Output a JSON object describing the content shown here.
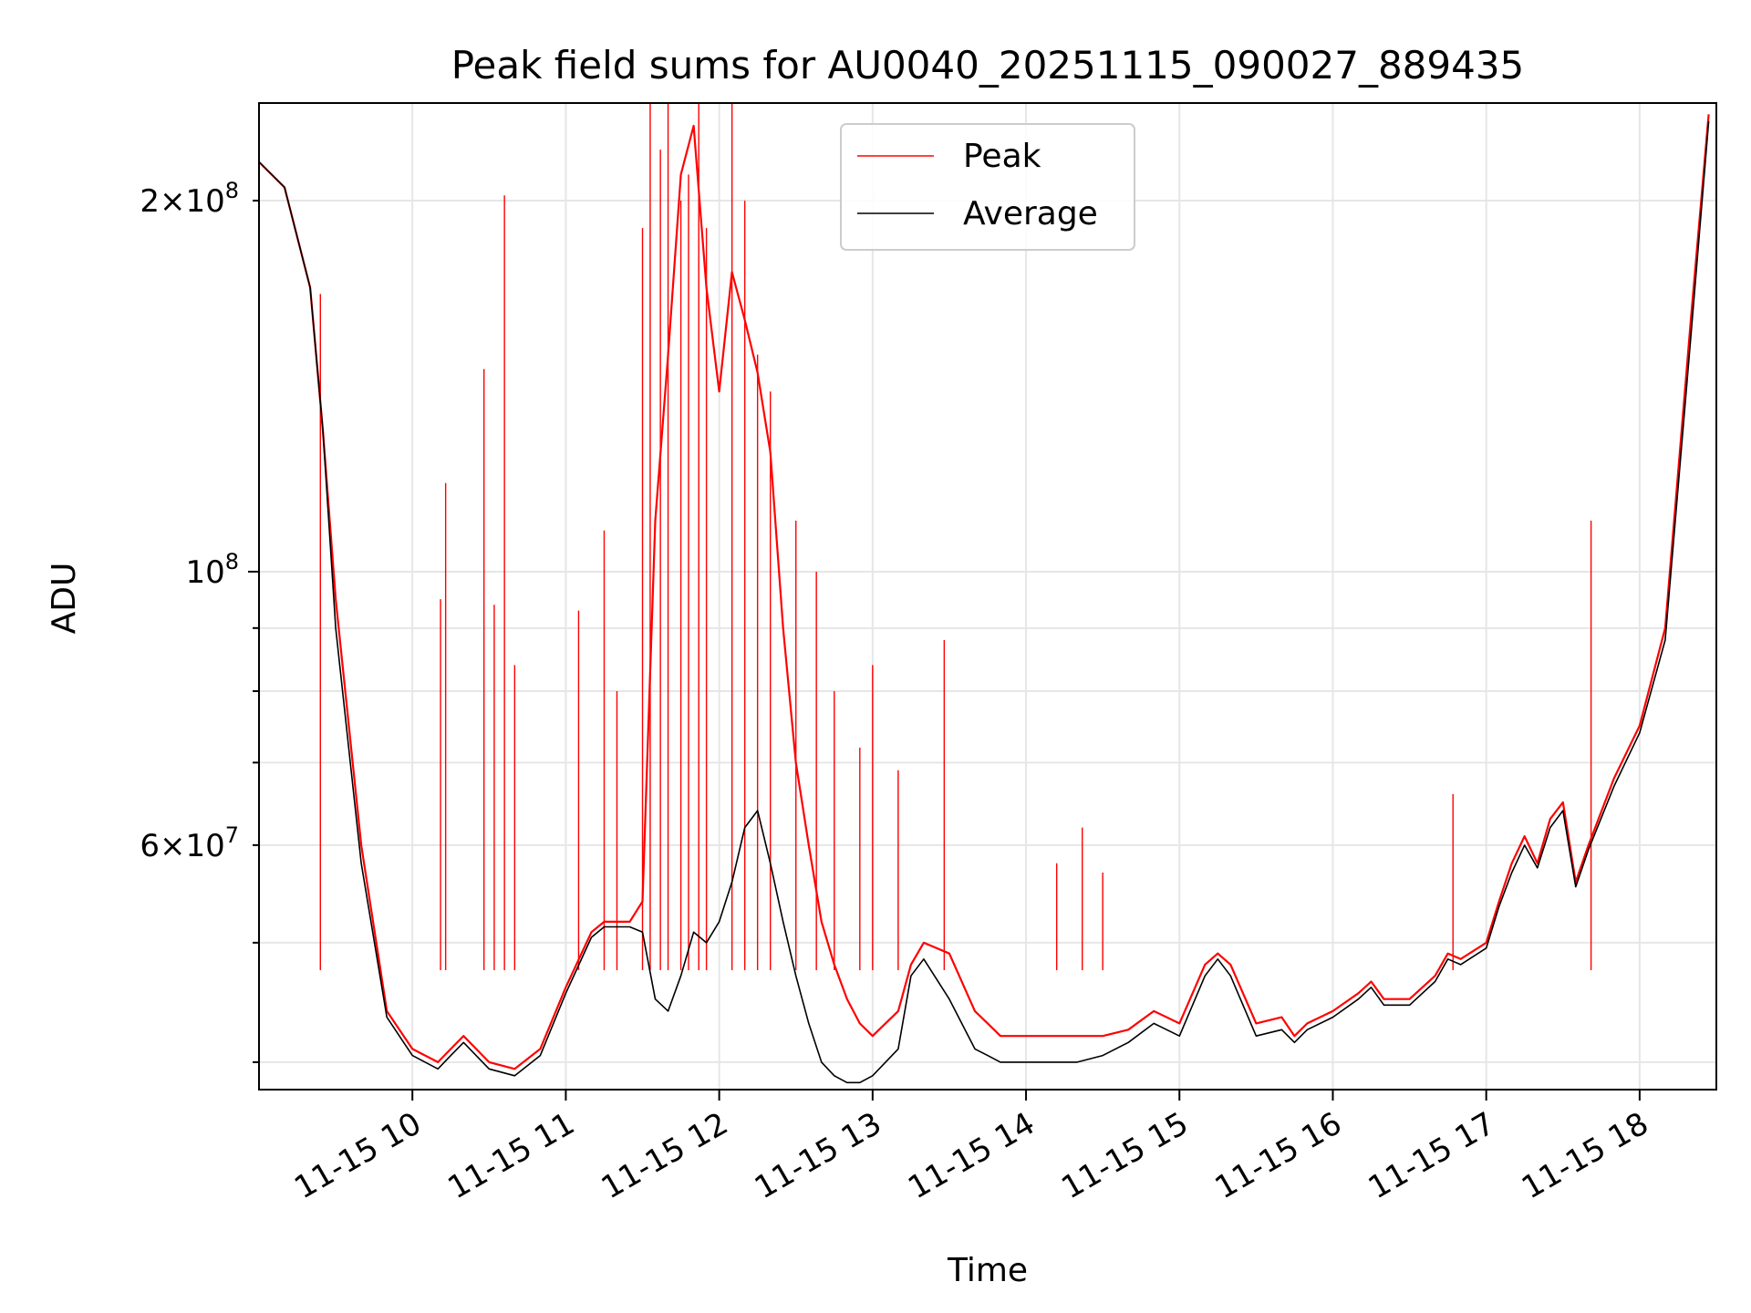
{
  "chart_data": {
    "type": "line",
    "title": "Peak field sums for AU0040_20251115_090027_889435",
    "xlabel": "Time",
    "ylabel": "ADU",
    "y_scale": "log",
    "ylim": [
      38000000,
      240000000
    ],
    "xlim": [
      "11-15 09:00",
      "11-15 18:30"
    ],
    "x_ticks": [
      "11-15 10",
      "11-15 11",
      "11-15 12",
      "11-15 13",
      "11-15 14",
      "11-15 15",
      "11-15 16",
      "11-15 17",
      "11-15 18"
    ],
    "y_ticks_labeled": [
      {
        "value": 60000000,
        "mantissa": "6",
        "exp": "7"
      },
      {
        "value": 100000000,
        "mantissa": "",
        "exp": "8"
      },
      {
        "value": 200000000,
        "mantissa": "2",
        "exp": "8"
      }
    ],
    "grid": true,
    "legend_position": "upper-center",
    "series": [
      {
        "name": "Peak",
        "color": "#ff0000",
        "x": [
          "09:00",
          "09:10",
          "09:20",
          "09:25",
          "09:30",
          "09:40",
          "09:50",
          "10:00",
          "10:05",
          "10:10",
          "10:15",
          "10:20",
          "10:30",
          "10:40",
          "10:50",
          "11:00",
          "11:10",
          "11:15",
          "11:20",
          "11:25",
          "11:30",
          "11:35",
          "11:40",
          "11:45",
          "11:50",
          "11:55",
          "12:00",
          "12:05",
          "12:10",
          "12:15",
          "12:20",
          "12:25",
          "12:30",
          "12:35",
          "12:40",
          "12:45",
          "12:50",
          "12:55",
          "13:00",
          "13:10",
          "13:15",
          "13:20",
          "13:30",
          "13:40",
          "13:45",
          "13:50",
          "14:00",
          "14:10",
          "14:20",
          "14:30",
          "14:40",
          "14:50",
          "15:00",
          "15:10",
          "15:15",
          "15:20",
          "15:30",
          "15:40",
          "15:45",
          "15:50",
          "16:00",
          "16:10",
          "16:15",
          "16:20",
          "16:30",
          "16:40",
          "16:45",
          "16:50",
          "17:00",
          "17:05",
          "17:10",
          "17:15",
          "17:20",
          "17:25",
          "17:30",
          "17:35",
          "17:40",
          "17:50",
          "18:00",
          "18:10",
          "18:20",
          "18:27"
        ],
        "values": [
          215000000,
          205000000,
          170000000,
          130000000,
          95000000,
          60000000,
          44000000,
          41000000,
          40500000,
          40000000,
          41000000,
          42000000,
          40000000,
          39500000,
          41000000,
          46000000,
          51000000,
          52000000,
          52000000,
          52000000,
          54000000,
          110000000,
          150000000,
          210000000,
          230000000,
          170000000,
          140000000,
          175000000,
          160000000,
          145000000,
          125000000,
          90000000,
          70000000,
          60000000,
          52000000,
          48000000,
          45000000,
          43000000,
          42000000,
          44000000,
          48000000,
          50000000,
          49000000,
          44000000,
          43000000,
          42000000,
          42000000,
          42000000,
          42000000,
          42000000,
          42500000,
          44000000,
          43000000,
          48000000,
          49000000,
          48000000,
          43000000,
          43500000,
          42000000,
          43000000,
          44000000,
          45500000,
          46500000,
          45000000,
          45000000,
          47000000,
          49000000,
          48500000,
          50000000,
          54000000,
          58000000,
          61000000,
          58000000,
          63000000,
          65000000,
          56000000,
          60000000,
          68000000,
          75000000,
          90000000,
          160000000,
          235000000
        ]
      },
      {
        "name": "Average",
        "color": "#000000",
        "x": [
          "09:00",
          "09:10",
          "09:20",
          "09:25",
          "09:30",
          "09:40",
          "09:50",
          "10:00",
          "10:05",
          "10:10",
          "10:15",
          "10:20",
          "10:30",
          "10:40",
          "10:50",
          "11:00",
          "11:10",
          "11:15",
          "11:20",
          "11:25",
          "11:30",
          "11:35",
          "11:40",
          "11:45",
          "11:50",
          "11:55",
          "12:00",
          "12:05",
          "12:10",
          "12:15",
          "12:20",
          "12:25",
          "12:30",
          "12:35",
          "12:40",
          "12:45",
          "12:50",
          "12:55",
          "13:00",
          "13:10",
          "13:15",
          "13:20",
          "13:30",
          "13:40",
          "13:45",
          "13:50",
          "14:00",
          "14:10",
          "14:20",
          "14:30",
          "14:40",
          "14:50",
          "15:00",
          "15:10",
          "15:15",
          "15:20",
          "15:30",
          "15:40",
          "15:45",
          "15:50",
          "16:00",
          "16:10",
          "16:15",
          "16:20",
          "16:30",
          "16:40",
          "16:45",
          "16:50",
          "17:00",
          "17:05",
          "17:10",
          "17:15",
          "17:20",
          "17:25",
          "17:30",
          "17:35",
          "17:40",
          "17:50",
          "18:00",
          "18:10",
          "18:20",
          "18:27"
        ],
        "values": [
          215000000,
          205000000,
          170000000,
          130000000,
          90000000,
          58000000,
          43500000,
          40500000,
          40000000,
          39500000,
          40500000,
          41500000,
          39500000,
          39000000,
          40500000,
          45500000,
          50500000,
          51500000,
          51500000,
          51500000,
          51000000,
          45000000,
          44000000,
          47000000,
          51000000,
          50000000,
          52000000,
          56000000,
          62000000,
          64000000,
          58000000,
          52000000,
          47000000,
          43000000,
          40000000,
          39000000,
          38500000,
          38500000,
          39000000,
          41000000,
          47000000,
          48500000,
          45000000,
          41000000,
          40500000,
          40000000,
          40000000,
          40000000,
          40000000,
          40500000,
          41500000,
          43000000,
          42000000,
          47000000,
          48500000,
          47000000,
          42000000,
          42500000,
          41500000,
          42500000,
          43500000,
          45000000,
          46000000,
          44500000,
          44500000,
          46500000,
          48500000,
          48000000,
          49500000,
          53500000,
          57000000,
          60000000,
          57500000,
          62000000,
          64000000,
          55500000,
          59500000,
          67000000,
          74000000,
          88000000,
          155000000,
          232000000
        ]
      }
    ],
    "spikes": [
      {
        "x": "09:24",
        "value": 168000000
      },
      {
        "x": "10:11",
        "value": 95000000
      },
      {
        "x": "10:13",
        "value": 118000000
      },
      {
        "x": "10:28",
        "value": 146000000
      },
      {
        "x": "10:32",
        "value": 94000000
      },
      {
        "x": "10:36",
        "value": 202000000
      },
      {
        "x": "10:40",
        "value": 84000000
      },
      {
        "x": "11:05",
        "value": 93000000
      },
      {
        "x": "11:15",
        "value": 108000000
      },
      {
        "x": "11:20",
        "value": 80000000
      },
      {
        "x": "11:30",
        "value": 190000000
      },
      {
        "x": "11:33",
        "value": 240000000
      },
      {
        "x": "11:37",
        "value": 220000000
      },
      {
        "x": "11:40",
        "value": 240000000
      },
      {
        "x": "11:45",
        "value": 200000000
      },
      {
        "x": "11:48",
        "value": 210000000
      },
      {
        "x": "11:52",
        "value": 240000000
      },
      {
        "x": "11:55",
        "value": 190000000
      },
      {
        "x": "12:05",
        "value": 240000000
      },
      {
        "x": "12:10",
        "value": 200000000
      },
      {
        "x": "12:15",
        "value": 150000000
      },
      {
        "x": "12:20",
        "value": 140000000
      },
      {
        "x": "12:30",
        "value": 110000000
      },
      {
        "x": "12:38",
        "value": 100000000
      },
      {
        "x": "12:45",
        "value": 80000000
      },
      {
        "x": "12:55",
        "value": 72000000
      },
      {
        "x": "13:00",
        "value": 84000000
      },
      {
        "x": "13:10",
        "value": 69000000
      },
      {
        "x": "13:28",
        "value": 88000000
      },
      {
        "x": "14:12",
        "value": 58000000
      },
      {
        "x": "14:22",
        "value": 62000000
      },
      {
        "x": "14:30",
        "value": 57000000
      },
      {
        "x": "16:47",
        "value": 66000000
      },
      {
        "x": "17:41",
        "value": 110000000
      }
    ]
  }
}
